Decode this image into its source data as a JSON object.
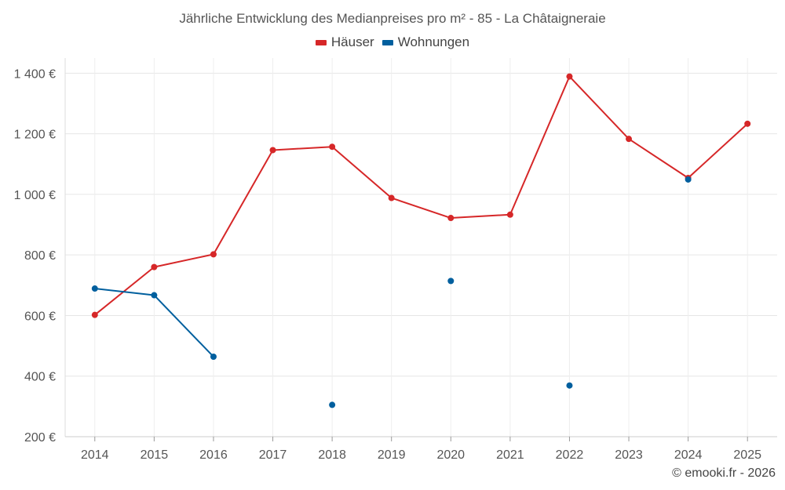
{
  "chart_data": {
    "type": "line",
    "title": "Jährliche Entwicklung des Medianpreises pro m² - 85 - La Châtaigneraie",
    "categories": [
      "2014",
      "2015",
      "2016",
      "2017",
      "2018",
      "2019",
      "2020",
      "2021",
      "2022",
      "2023",
      "2024",
      "2025"
    ],
    "ylim": [
      200,
      1450
    ],
    "yticks": [
      200,
      400,
      600,
      800,
      1000,
      1200,
      1400
    ],
    "ytick_labels": [
      "200 €",
      "400 €",
      "600 €",
      "800 €",
      "1 000 €",
      "1 200 €",
      "1 400 €"
    ],
    "grid": true,
    "legend_position": "top-center",
    "series": [
      {
        "name": "Häuser",
        "color": "#d62728",
        "values": [
          602,
          760,
          802,
          1146,
          1157,
          988,
          922,
          933,
          1389,
          1183,
          1054,
          1233
        ]
      },
      {
        "name": "Wohnungen",
        "color": "#005f9e",
        "values": [
          689,
          667,
          464,
          null,
          305,
          null,
          714,
          null,
          369,
          null,
          1049,
          null
        ]
      }
    ]
  },
  "footer": {
    "copyright": "© emooki.fr - 2026"
  }
}
